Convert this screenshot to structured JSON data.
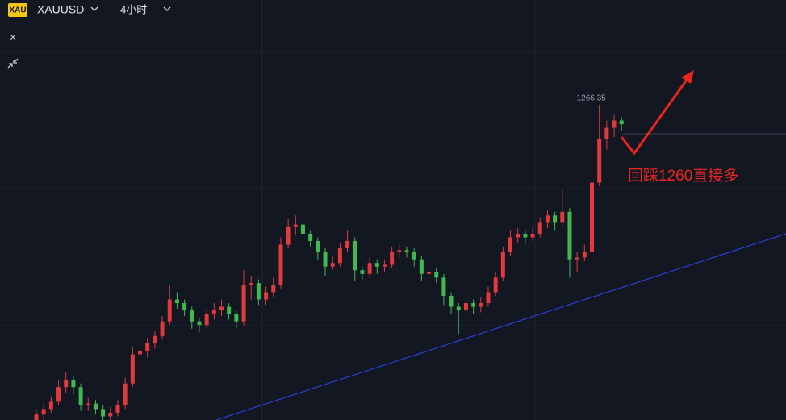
{
  "toolbar": {
    "badge": "XAU",
    "symbol": "XAUUSD",
    "interval": "4小时",
    "close": "×"
  },
  "chart_data": {
    "type": "candlestick",
    "annotation": "回踩1260直接多",
    "ylim": [
      1180,
      1295
    ],
    "up_color": "#e0393e",
    "down_color": "#3fb950",
    "high_label_index": 76,
    "candles": [
      [
        1180,
        1183,
        1178.5,
        1181.5
      ],
      [
        1181.5,
        1184.5,
        1180,
        1183
      ],
      [
        1183,
        1186.5,
        1182,
        1185
      ],
      [
        1185,
        1191,
        1184,
        1189
      ],
      [
        1189,
        1193,
        1187.5,
        1191
      ],
      [
        1191,
        1192,
        1187,
        1189
      ],
      [
        1189,
        1190,
        1182.5,
        1184
      ],
      [
        1184,
        1186,
        1182.5,
        1184.5
      ],
      [
        1184.5,
        1185.5,
        1181.5,
        1183
      ],
      [
        1183,
        1184,
        1179.5,
        1181
      ],
      [
        1181,
        1183.5,
        1180,
        1182
      ],
      [
        1182,
        1185.5,
        1181,
        1184
      ],
      [
        1184,
        1191.5,
        1183,
        1190
      ],
      [
        1190,
        1200,
        1189,
        1198
      ],
      [
        1198,
        1201,
        1196.5,
        1199
      ],
      [
        1199,
        1202.5,
        1197,
        1201
      ],
      [
        1201,
        1204.5,
        1199.5,
        1203
      ],
      [
        1203,
        1208.5,
        1202,
        1207
      ],
      [
        1207,
        1217,
        1206,
        1213
      ],
      [
        1213,
        1215,
        1210.5,
        1212
      ],
      [
        1212,
        1213,
        1208.5,
        1210
      ],
      [
        1210,
        1211,
        1205,
        1207
      ],
      [
        1207,
        1208,
        1204,
        1206
      ],
      [
        1206,
        1210.5,
        1205,
        1209
      ],
      [
        1209,
        1212,
        1207.5,
        1210
      ],
      [
        1210,
        1213,
        1208.5,
        1211
      ],
      [
        1211,
        1212,
        1207.5,
        1209
      ],
      [
        1209,
        1210,
        1205,
        1207
      ],
      [
        1207,
        1221,
        1206,
        1217
      ],
      [
        1217,
        1219.5,
        1213,
        1217.5
      ],
      [
        1217.5,
        1218.5,
        1211.5,
        1213
      ],
      [
        1213,
        1216.5,
        1211.5,
        1215
      ],
      [
        1215,
        1219,
        1213.5,
        1217
      ],
      [
        1217,
        1230,
        1216,
        1228
      ],
      [
        1228,
        1235,
        1227,
        1233
      ],
      [
        1233,
        1236,
        1230.5,
        1233.5
      ],
      [
        1233.5,
        1234.5,
        1229.5,
        1231
      ],
      [
        1231,
        1232,
        1227.5,
        1229
      ],
      [
        1229,
        1230,
        1224,
        1226
      ],
      [
        1226,
        1227,
        1219.5,
        1222
      ],
      [
        1222,
        1225,
        1221,
        1223
      ],
      [
        1223,
        1228.5,
        1222,
        1227
      ],
      [
        1227,
        1232,
        1226,
        1229
      ],
      [
        1229,
        1230,
        1218,
        1221
      ],
      [
        1221,
        1222,
        1218.5,
        1220
      ],
      [
        1220,
        1224.5,
        1219,
        1223
      ],
      [
        1223,
        1224,
        1220,
        1222
      ],
      [
        1222,
        1224,
        1220.5,
        1222.5
      ],
      [
        1222.5,
        1227.5,
        1221.5,
        1226
      ],
      [
        1226,
        1228,
        1224.5,
        1226.5
      ],
      [
        1226.5,
        1227.5,
        1224.5,
        1226
      ],
      [
        1226,
        1227,
        1222,
        1224
      ],
      [
        1224,
        1225,
        1218,
        1220
      ],
      [
        1220,
        1222,
        1218.5,
        1220.5
      ],
      [
        1220.5,
        1221.5,
        1217.5,
        1219
      ],
      [
        1219,
        1220,
        1211.5,
        1214
      ],
      [
        1214,
        1215,
        1209,
        1211
      ],
      [
        1211,
        1212,
        1203.5,
        1210
      ],
      [
        1210,
        1213.5,
        1208,
        1212
      ],
      [
        1212,
        1213,
        1209,
        1211
      ],
      [
        1211,
        1213.5,
        1209.5,
        1212
      ],
      [
        1212,
        1216.5,
        1211,
        1215
      ],
      [
        1215,
        1220.5,
        1214,
        1219
      ],
      [
        1219,
        1227.5,
        1218,
        1226
      ],
      [
        1226,
        1232,
        1225,
        1230
      ],
      [
        1230,
        1232.5,
        1228.5,
        1231
      ],
      [
        1231,
        1232,
        1228,
        1230
      ],
      [
        1230,
        1233,
        1229,
        1231
      ],
      [
        1231,
        1235.5,
        1230,
        1234
      ],
      [
        1234,
        1237.5,
        1232.5,
        1236
      ],
      [
        1236,
        1237,
        1232,
        1234
      ],
      [
        1234,
        1243,
        1233,
        1237
      ],
      [
        1237,
        1238,
        1219,
        1224
      ],
      [
        1224,
        1226,
        1220.5,
        1224.5
      ],
      [
        1224.5,
        1228,
        1223.5,
        1226
      ],
      [
        1226,
        1247,
        1225,
        1245
      ],
      [
        1245,
        1266.35,
        1244,
        1257
      ],
      [
        1257,
        1262,
        1254,
        1260
      ],
      [
        1260,
        1263.5,
        1257.5,
        1262
      ],
      [
        1262,
        1263,
        1259,
        1261
      ]
    ]
  }
}
